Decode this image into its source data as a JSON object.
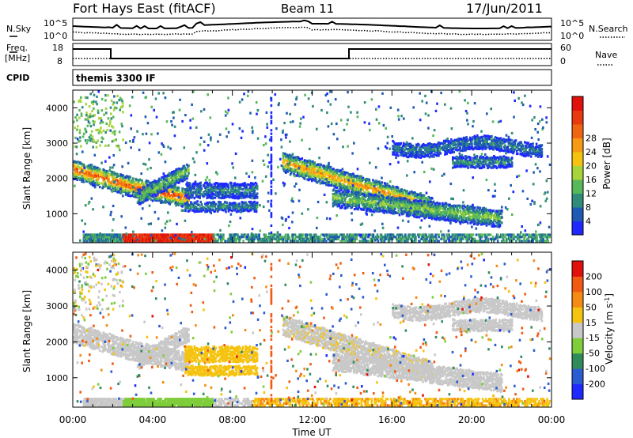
{
  "header": {
    "station": "Fort Hays East (fitACF)",
    "beam": "Beam 11",
    "date": "17/Jun/2011"
  },
  "noise_panel": {
    "left_label": "N.Sky",
    "right_label": "N.Search",
    "left_ticks": [
      "10^5",
      "10^0"
    ],
    "right_ticks": [
      "10^5",
      "10^0"
    ]
  },
  "freq_panel": {
    "left_label_1": "Freq.",
    "left_label_2": "[MHz]",
    "right_label": "Nave",
    "left_ticks": [
      "18",
      "8"
    ],
    "right_ticks": [
      "60",
      "0"
    ]
  },
  "cpid_panel": {
    "label": "CPID",
    "text": "themis 3300 IF"
  },
  "chart_data": [
    {
      "type": "heatmap",
      "title": "",
      "xlabel": "Time UT",
      "ylabel": "Slant Range [km]",
      "x_ticks": [
        "00:00",
        "04:00",
        "08:00",
        "12:00",
        "16:00",
        "20:00",
        "00:00"
      ],
      "y_ticks": [
        "1000",
        "2000",
        "3000",
        "4000"
      ],
      "ylim": [
        180,
        4500
      ],
      "xlim_hours": [
        0,
        24
      ],
      "colorbar": {
        "label": "Power [dB]",
        "ticks": [
          "4",
          "8",
          "12",
          "16",
          "20",
          "24",
          "28"
        ],
        "colors": [
          "#1f28ff",
          "#1e5ab4",
          "#2f8c7a",
          "#57b85a",
          "#a7d43a",
          "#f5c30f",
          "#f59a14",
          "#f06512",
          "#e83a0e",
          "#e0100a"
        ]
      },
      "features": [
        {
          "name": "night arc",
          "hours": [
            0.0,
            5.8
          ],
          "range_km": [
            1300,
            2300
          ],
          "peak_power_db": 28
        },
        {
          "name": "near range band",
          "hours": [
            0.5,
            24.0
          ],
          "range_km": [
            200,
            450
          ],
          "peak_power_db": 30
        },
        {
          "name": "mid arc",
          "hours": [
            13.0,
            21.5
          ],
          "range_km": [
            800,
            1900
          ],
          "peak_power_db": 24
        },
        {
          "name": "high range scatter",
          "hours": [
            16.0,
            23.5
          ],
          "range_km": [
            2400,
            3300
          ],
          "peak_power_db": 12
        }
      ]
    },
    {
      "type": "heatmap",
      "title": "",
      "xlabel": "Time UT",
      "ylabel": "Slant Range [km]",
      "x_ticks": [
        "00:00",
        "04:00",
        "08:00",
        "12:00",
        "16:00",
        "20:00",
        "00:00"
      ],
      "y_ticks": [
        "1000",
        "2000",
        "3000",
        "4000"
      ],
      "ylim": [
        180,
        4500
      ],
      "xlim_hours": [
        0,
        24
      ],
      "colorbar": {
        "label": "Velocity [m s^-1]",
        "ticks": [
          "200",
          "100",
          "50",
          "15",
          "-15",
          "-50",
          "-100",
          "-200"
        ],
        "colors": [
          "#1f28ff",
          "#2b5bd1",
          "#2f8c5a",
          "#7fcd3b",
          "#c8c8c8",
          "#f5c30f",
          "#f58a14",
          "#f05a12",
          "#e0100a"
        ]
      },
      "features": [
        {
          "name": "ground scatter",
          "hours": [
            0.0,
            22.0
          ],
          "range_km": [
            800,
            2700
          ],
          "velocity_ms": [
            -15,
            15
          ]
        },
        {
          "name": "near range flow",
          "hours": [
            3.0,
            23.0
          ],
          "range_km": [
            200,
            500
          ],
          "velocity_ms": [
            -60,
            60
          ]
        }
      ]
    }
  ]
}
